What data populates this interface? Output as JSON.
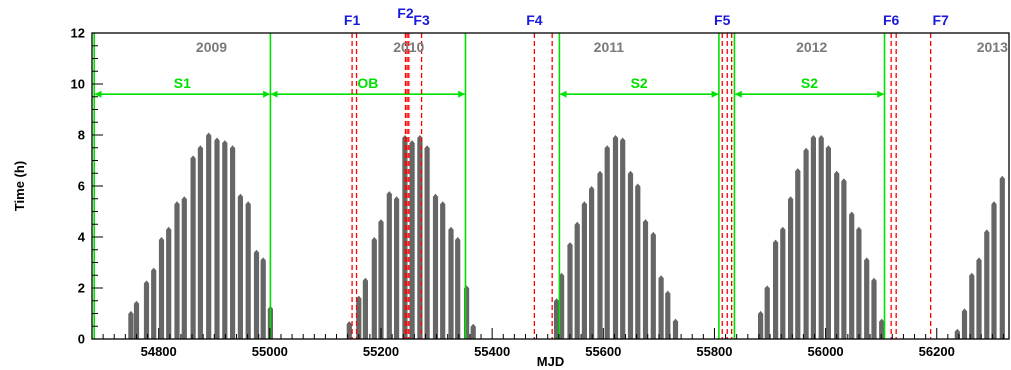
{
  "chart_data": {
    "type": "bar",
    "title": "",
    "xlabel": "MJD",
    "ylabel": "Time (h)",
    "xlim": [
      54680,
      56330
    ],
    "ylim": [
      0,
      12
    ],
    "x_ticks": [
      "54800",
      "55000",
      "55200",
      "55400",
      "55600",
      "55800",
      "56000",
      "56200"
    ],
    "y_ticks": [
      "0",
      "2",
      "4",
      "6",
      "8",
      "10",
      "12"
    ],
    "grid": false,
    "colors": {
      "bars": "#666666",
      "periods": "#00e000",
      "flares": "#ff0000",
      "flare_labels": "#1a1adc",
      "years": "#7a7a7a"
    },
    "years": [
      {
        "label": "2009",
        "x": 54895
      },
      {
        "label": "2010",
        "x": 55250
      },
      {
        "label": "2011",
        "x": 55610
      },
      {
        "label": "2012",
        "x": 55975
      },
      {
        "label": "2013",
        "x": 56300
      }
    ],
    "period_boundaries": [
      54684,
      55001,
      55352,
      55521,
      55808,
      55836,
      56106
    ],
    "periods": [
      {
        "label": "S1",
        "start": 54684,
        "end": 55001
      },
      {
        "label": "OB",
        "start": 55001,
        "end": 55352
      },
      {
        "label": "S2",
        "start": 55521,
        "end": 55808
      },
      {
        "label": "S2",
        "start": 55836,
        "end": 56106
      }
    ],
    "period_arrow_y": 9.6,
    "flares": [
      {
        "label": "F1",
        "lines": [
          55148,
          55156
        ]
      },
      {
        "label": "F2",
        "lines": [
          55244,
          55247,
          55250
        ]
      },
      {
        "label": "F3",
        "lines": [
          55273
        ]
      },
      {
        "label": "F4",
        "lines": [
          55476,
          55508
        ]
      },
      {
        "label": "F5",
        "lines": [
          55814,
          55823,
          55831
        ]
      },
      {
        "label": "F6",
        "lines": [
          56118,
          56127
        ]
      },
      {
        "label": "F7",
        "lines": [
          56189
        ]
      }
    ],
    "series": [
      {
        "values": [
          {
            "x": 54750,
            "y": 1.1
          },
          {
            "x": 54760,
            "y": 1.5
          },
          {
            "x": 54778,
            "y": 2.3
          },
          {
            "x": 54791,
            "y": 2.8
          },
          {
            "x": 54805,
            "y": 4.0
          },
          {
            "x": 54818,
            "y": 4.4
          },
          {
            "x": 54833,
            "y": 5.4
          },
          {
            "x": 54846,
            "y": 5.6
          },
          {
            "x": 54862,
            "y": 7.2
          },
          {
            "x": 54875,
            "y": 7.6
          },
          {
            "x": 54890,
            "y": 8.1
          },
          {
            "x": 54905,
            "y": 7.9
          },
          {
            "x": 54919,
            "y": 7.8
          },
          {
            "x": 54933,
            "y": 7.6
          },
          {
            "x": 54947,
            "y": 5.7
          },
          {
            "x": 54961,
            "y": 5.4
          },
          {
            "x": 54976,
            "y": 3.5
          },
          {
            "x": 54988,
            "y": 3.2
          },
          {
            "x": 55001,
            "y": 1.3
          },
          {
            "x": 55143,
            "y": 0.7
          },
          {
            "x": 55160,
            "y": 1.7
          },
          {
            "x": 55172,
            "y": 2.4
          },
          {
            "x": 55188,
            "y": 4.0
          },
          {
            "x": 55200,
            "y": 4.7
          },
          {
            "x": 55215,
            "y": 5.8
          },
          {
            "x": 55228,
            "y": 5.6
          },
          {
            "x": 55243,
            "y": 8.0
          },
          {
            "x": 55256,
            "y": 7.8
          },
          {
            "x": 55270,
            "y": 8.0
          },
          {
            "x": 55283,
            "y": 7.6
          },
          {
            "x": 55298,
            "y": 5.7
          },
          {
            "x": 55311,
            "y": 5.4
          },
          {
            "x": 55326,
            "y": 4.4
          },
          {
            "x": 55338,
            "y": 4.0
          },
          {
            "x": 55354,
            "y": 2.1
          },
          {
            "x": 55366,
            "y": 0.6
          },
          {
            "x": 55516,
            "y": 1.6
          },
          {
            "x": 55525,
            "y": 2.6
          },
          {
            "x": 55540,
            "y": 3.8
          },
          {
            "x": 55553,
            "y": 4.6
          },
          {
            "x": 55566,
            "y": 5.4
          },
          {
            "x": 55579,
            "y": 6.0
          },
          {
            "x": 55594,
            "y": 6.6
          },
          {
            "x": 55607,
            "y": 7.6
          },
          {
            "x": 55622,
            "y": 8.0
          },
          {
            "x": 55635,
            "y": 7.9
          },
          {
            "x": 55649,
            "y": 6.6
          },
          {
            "x": 55662,
            "y": 6.1
          },
          {
            "x": 55676,
            "y": 4.7
          },
          {
            "x": 55690,
            "y": 4.2
          },
          {
            "x": 55704,
            "y": 2.5
          },
          {
            "x": 55716,
            "y": 1.9
          },
          {
            "x": 55730,
            "y": 0.8
          },
          {
            "x": 55883,
            "y": 1.1
          },
          {
            "x": 55895,
            "y": 2.1
          },
          {
            "x": 55910,
            "y": 3.9
          },
          {
            "x": 55923,
            "y": 4.4
          },
          {
            "x": 55937,
            "y": 5.6
          },
          {
            "x": 55950,
            "y": 6.7
          },
          {
            "x": 55965,
            "y": 7.5
          },
          {
            "x": 55978,
            "y": 8.0
          },
          {
            "x": 55992,
            "y": 8.0
          },
          {
            "x": 56005,
            "y": 7.6
          },
          {
            "x": 56020,
            "y": 6.6
          },
          {
            "x": 56033,
            "y": 6.3
          },
          {
            "x": 56047,
            "y": 5.0
          },
          {
            "x": 56060,
            "y": 4.4
          },
          {
            "x": 56074,
            "y": 3.2
          },
          {
            "x": 56087,
            "y": 2.4
          },
          {
            "x": 56101,
            "y": 0.8
          },
          {
            "x": 56237,
            "y": 0.4
          },
          {
            "x": 56250,
            "y": 1.2
          },
          {
            "x": 56263,
            "y": 2.6
          },
          {
            "x": 56276,
            "y": 3.2
          },
          {
            "x": 56290,
            "y": 4.3
          },
          {
            "x": 56303,
            "y": 5.4
          },
          {
            "x": 56318,
            "y": 6.4
          }
        ]
      }
    ]
  }
}
